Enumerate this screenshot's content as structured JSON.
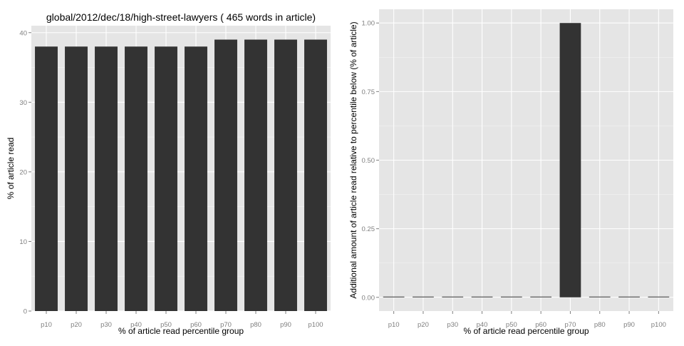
{
  "chart_data": [
    {
      "type": "bar",
      "title": "global/2012/dec/18/high-street-lawyers ( 465 words in article)",
      "xlabel": "% of article read percentile group",
      "ylabel": "% of article read",
      "categories": [
        "p10",
        "p20",
        "p30",
        "p40",
        "p50",
        "p60",
        "p70",
        "p80",
        "p90",
        "p100"
      ],
      "values": [
        38,
        38,
        38,
        38,
        38,
        38,
        39,
        39,
        39,
        39
      ],
      "ylim": [
        0,
        41
      ],
      "yticks": [
        0,
        10,
        20,
        30,
        40
      ],
      "ytick_labels": [
        "0",
        "10",
        "20",
        "30",
        "40"
      ],
      "bar_color": "#333333",
      "panel_color": "#e5e5e5",
      "grid": true
    },
    {
      "type": "bar",
      "title": "",
      "xlabel": "% of article read percentile group",
      "ylabel": "Additional amount of article read relative to percentile below (% of article)",
      "categories": [
        "p10",
        "p20",
        "p30",
        "p40",
        "p50",
        "p60",
        "p70",
        "p80",
        "p90",
        "p100"
      ],
      "values": [
        0,
        0,
        0,
        0,
        0,
        0,
        1,
        0,
        0,
        0
      ],
      "ylim": [
        -0.05,
        1.05
      ],
      "yticks": [
        0,
        0.25,
        0.5,
        0.75,
        1
      ],
      "ytick_labels": [
        "0.00",
        "0.25",
        "0.50",
        "0.75",
        "1.00"
      ],
      "bar_color": "#333333",
      "panel_color": "#e5e5e5",
      "grid": true
    }
  ]
}
